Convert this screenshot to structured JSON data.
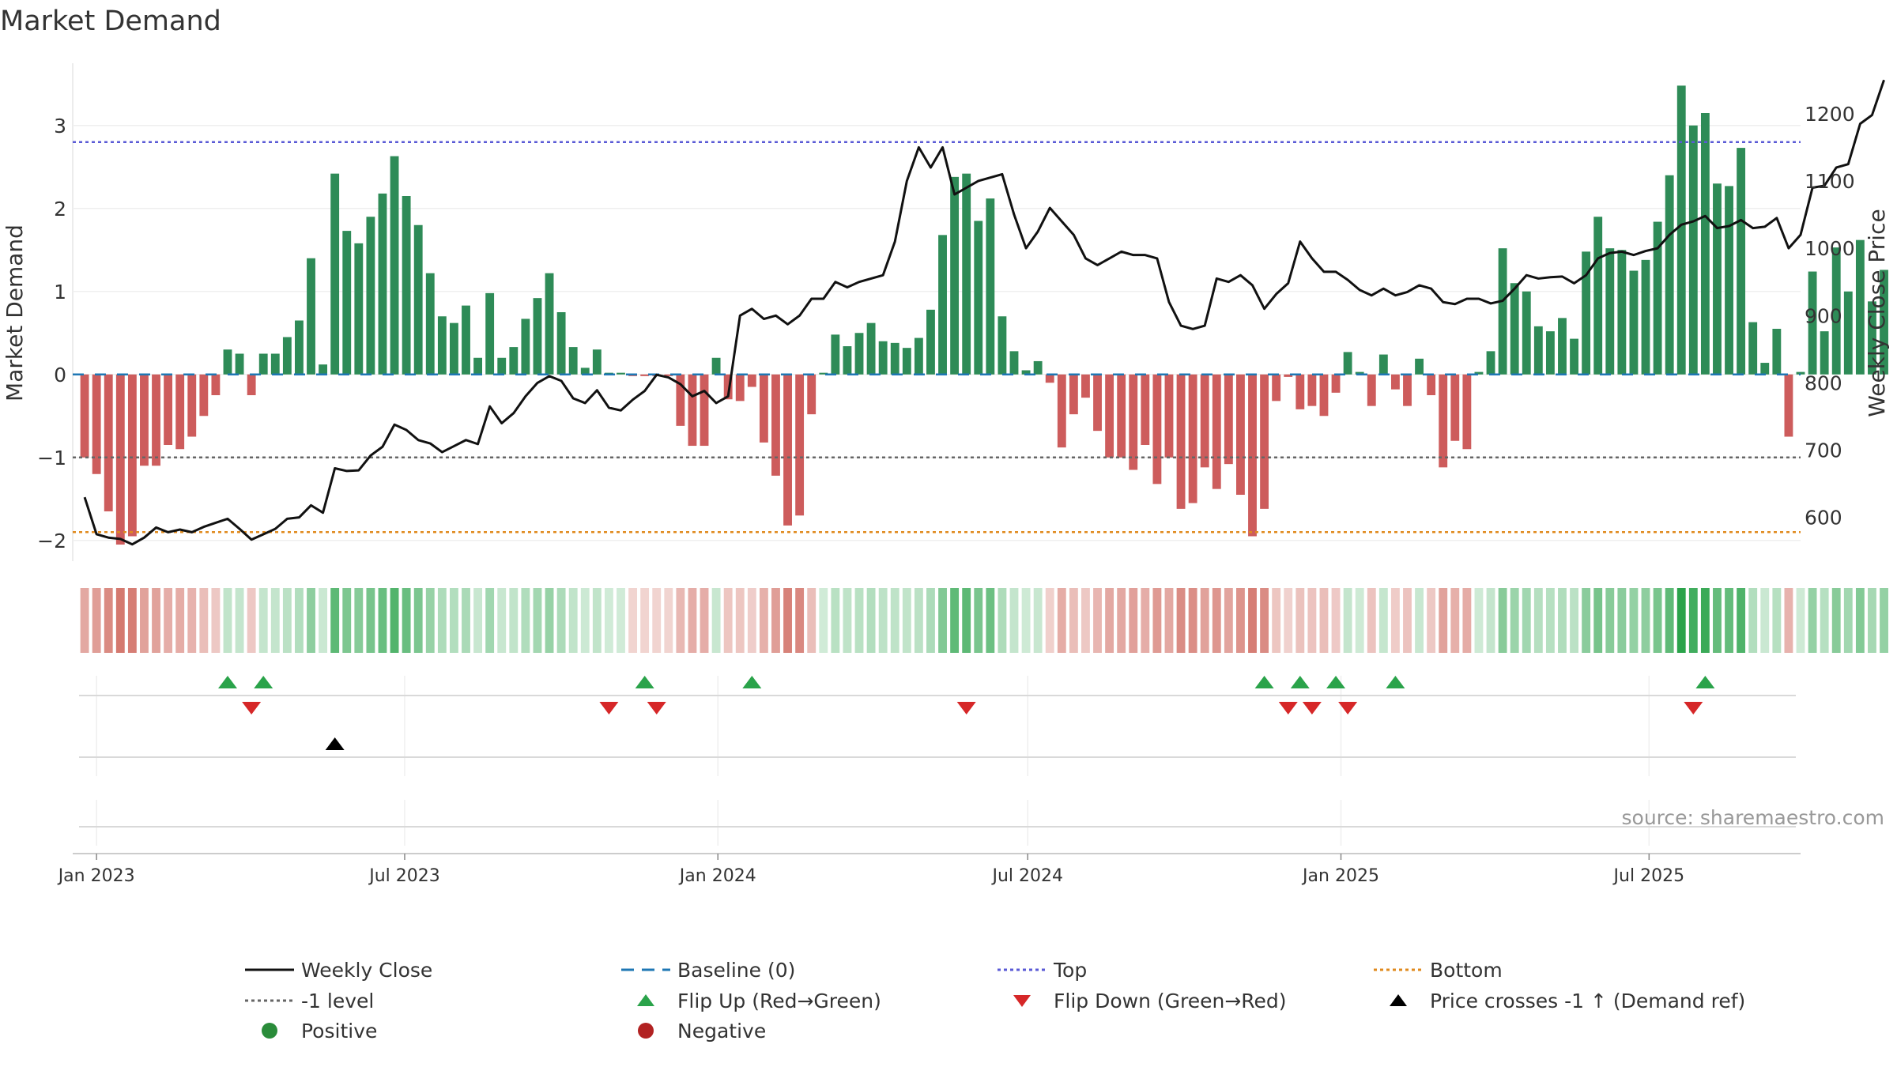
{
  "chart_data": {
    "type": "bar",
    "title": "Market Demand",
    "ylabel": "Market Demand",
    "y2label": "Weekly Close Price",
    "ylim": [
      -2.25,
      3.75
    ],
    "y2lim": [
      535,
      1275
    ],
    "yticks": [
      -2,
      -1,
      0,
      1,
      2,
      3
    ],
    "y2ticks": [
      600,
      700,
      800,
      900,
      1000,
      1100,
      1200
    ],
    "xticks": [
      "Jan 2023",
      "Jul 2023",
      "Jan 2024",
      "Jul 2024",
      "Jan 2025",
      "Jul 2025"
    ],
    "source": "source: sharemaestro.com",
    "levels": {
      "top": 2.8,
      "bottom": -1.9,
      "minus_one": -1,
      "baseline": 0
    },
    "x_start": "2022-12-18",
    "x_end": "2025-09-28",
    "first_bar_date": "2022-12-25",
    "demand": [
      -1.0,
      -1.2,
      -1.65,
      -2.05,
      -1.95,
      -1.1,
      -1.1,
      -0.85,
      -0.9,
      -0.75,
      -0.5,
      -0.25,
      0.3,
      0.25,
      -0.25,
      0.25,
      0.25,
      0.45,
      0.65,
      1.4,
      0.12,
      2.42,
      1.73,
      1.58,
      1.9,
      2.18,
      2.63,
      2.15,
      1.8,
      1.22,
      0.7,
      0.62,
      0.83,
      0.2,
      0.98,
      0.2,
      0.33,
      0.67,
      0.92,
      1.22,
      0.75,
      0.33,
      0.08,
      0.3,
      0.02,
      0.02,
      -0.02,
      -0.02,
      -0.02,
      -0.02,
      -0.62,
      -0.86,
      -0.86,
      0.2,
      -0.3,
      -0.32,
      -0.15,
      -0.82,
      -1.22,
      -1.82,
      -1.7,
      -0.48,
      0.02,
      0.48,
      0.34,
      0.5,
      0.62,
      0.4,
      0.38,
      0.32,
      0.44,
      0.78,
      1.68,
      2.38,
      2.42,
      1.85,
      2.12,
      0.7,
      0.28,
      0.05,
      0.16,
      -0.1,
      -0.88,
      -0.48,
      -0.28,
      -0.68,
      -1.0,
      -1.0,
      -1.15,
      -0.85,
      -1.32,
      -1.0,
      -1.62,
      -1.55,
      -1.12,
      -1.38,
      -1.08,
      -1.45,
      -1.95,
      -1.62,
      -0.32,
      -0.03,
      -0.42,
      -0.38,
      -0.5,
      -0.22,
      0.27,
      0.03,
      -0.38,
      0.24,
      -0.18,
      -0.38,
      0.19,
      -0.25,
      -1.12,
      -0.8,
      -0.9,
      0.03,
      0.28,
      1.52,
      1.1,
      1.0,
      0.58,
      0.52,
      0.68,
      0.43,
      1.48,
      1.9,
      1.52,
      1.5,
      1.25,
      1.38,
      1.84,
      2.4,
      3.48,
      3.0,
      3.15,
      2.3,
      2.27,
      2.73,
      0.63,
      0.14,
      0.55,
      -0.75,
      0.03,
      1.24,
      0.52,
      1.53,
      1.0,
      1.62,
      0.88,
      1.26
    ],
    "price": [
      630,
      575,
      570,
      568,
      560,
      570,
      585,
      578,
      582,
      578,
      586,
      592,
      598,
      583,
      567,
      575,
      583,
      598,
      600,
      618,
      607,
      673,
      669,
      670,
      692,
      705,
      738,
      730,
      715,
      710,
      697,
      706,
      715,
      709,
      765,
      740,
      755,
      780,
      800,
      810,
      803,
      777,
      770,
      789,
      763,
      759,
      775,
      788,
      812,
      808,
      798,
      780,
      788,
      770,
      780,
      900,
      910,
      895,
      900,
      887,
      900,
      925,
      925,
      950,
      942,
      950,
      955,
      960,
      1010,
      1100,
      1150,
      1120,
      1150,
      1080,
      1090,
      1100,
      1105,
      1110,
      1050,
      1000,
      1025,
      1060,
      1040,
      1020,
      985,
      975,
      985,
      995,
      990,
      990,
      985,
      920,
      885,
      880,
      885,
      955,
      950,
      960,
      945,
      910,
      932,
      948,
      1010,
      985,
      965,
      965,
      953,
      938,
      930,
      940,
      930,
      935,
      945,
      940,
      920,
      917,
      925,
      925,
      918,
      922,
      940,
      960,
      955,
      957,
      958,
      948,
      960,
      985,
      993,
      995,
      990,
      996,
      1000,
      1020,
      1035,
      1040,
      1048,
      1030,
      1033,
      1042,
      1030,
      1032,
      1045,
      1000,
      1020,
      1090,
      1093,
      1120,
      1125,
      1185,
      1198,
      1250
    ],
    "flip_up": [
      12,
      15,
      47,
      56,
      99,
      102,
      105,
      110,
      136
    ],
    "flip_down": [
      14,
      44,
      48,
      74,
      101,
      103,
      106,
      135
    ],
    "price_cross": [
      21
    ],
    "legend": [
      {
        "key": "weekly-close",
        "label": "Weekly Close",
        "color": "#111111"
      },
      {
        "key": "baseline",
        "label": "Baseline (0)",
        "color": "#1f77b4"
      },
      {
        "key": "top",
        "label": "Top",
        "color": "#5a5ad6"
      },
      {
        "key": "bottom",
        "label": "Bottom",
        "color": "#e08a1e"
      },
      {
        "key": "minus-one",
        "label": "-1 level",
        "color": "#666666"
      },
      {
        "key": "flip-up",
        "label": "Flip Up (Red→Green)",
        "color": "#2aa34a"
      },
      {
        "key": "flip-down",
        "label": "Flip Down (Green→Red)",
        "color": "#d62728"
      },
      {
        "key": "price-cross",
        "label": "Price crosses -1 ↑ (Demand ref)",
        "color": "#000000"
      },
      {
        "key": "positive",
        "label": "Positive",
        "color": "#2a8c3a"
      },
      {
        "key": "negative",
        "label": "Negative",
        "color": "#b22222"
      }
    ],
    "colors": {
      "positive_bar": "#2e8b57",
      "negative_bar": "#cd5c5c",
      "price_line": "#111111",
      "strip_green": "#2aa34a",
      "strip_red": "#c0392b"
    }
  }
}
